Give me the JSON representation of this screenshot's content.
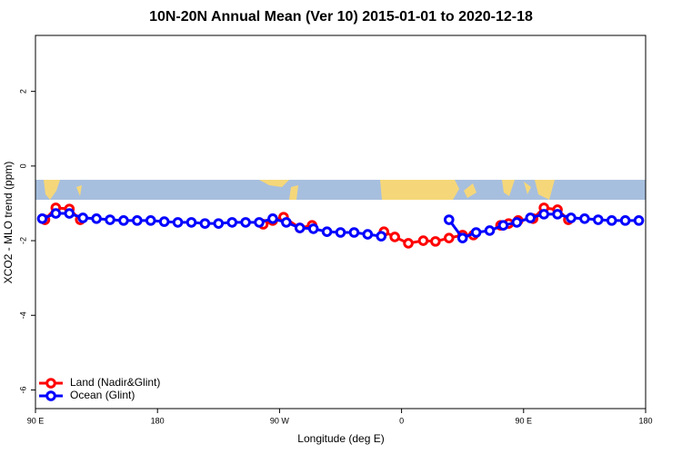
{
  "chart_data": {
    "type": "line",
    "title": "10N-20N Annual Mean (Ver 10)   2015-01-01 to 2020-12-18",
    "x_label": "Longitude (deg E)",
    "y_label": "XCO2 - MLO trend (ppm)",
    "xlim": [
      90,
      540
    ],
    "xticks": [
      {
        "value": 90,
        "label": "90 E"
      },
      180,
      {
        "value": 270,
        "label": "90 W"
      },
      {
        "value": 360,
        "label": "0"
      },
      {
        "value": 450,
        "label": "90 E"
      },
      {
        "value": 540,
        "label": "180"
      }
    ],
    "ylim": [
      -6.5,
      3.5
    ],
    "yticks": [
      -6,
      -4,
      -2,
      0,
      2
    ],
    "legend": "bottom-left",
    "series": [
      {
        "name": "Land (Nadir&Glint)",
        "color": "#ff0000",
        "x": [
          97,
          105,
          115,
          123,
          190,
          258,
          265,
          273,
          285,
          294,
          320,
          347,
          355,
          365,
          376,
          385,
          395,
          405,
          413,
          423,
          433,
          439,
          446,
          457,
          465,
          475,
          483
        ],
        "values": [
          -1.44,
          -1.12,
          -1.15,
          -1.44,
          null,
          -1.56,
          -1.46,
          -1.37,
          -1.66,
          -1.59,
          null,
          -1.76,
          -1.9,
          -2.07,
          -2.0,
          -2.02,
          -1.93,
          -1.85,
          -1.85,
          null,
          -1.59,
          -1.54,
          -1.46,
          -1.41,
          -1.12,
          -1.17,
          -1.44
        ]
      },
      {
        "name": "Ocean (Glint)",
        "color": "#0000ff",
        "x": [
          95,
          105,
          115,
          125,
          135,
          145,
          155,
          165,
          175,
          185,
          195,
          205,
          215,
          225,
          235,
          245,
          255,
          265,
          275,
          285,
          295,
          305,
          315,
          325,
          335,
          345,
          355,
          365,
          375,
          385,
          395,
          405,
          415,
          425,
          435,
          445,
          455,
          465,
          475,
          485,
          495,
          505,
          515,
          525,
          535
        ],
        "values": [
          -1.41,
          -1.27,
          -1.27,
          -1.39,
          -1.41,
          -1.44,
          -1.46,
          -1.46,
          -1.46,
          -1.49,
          -1.51,
          -1.51,
          -1.54,
          -1.54,
          -1.51,
          -1.51,
          -1.51,
          -1.41,
          -1.51,
          -1.66,
          -1.68,
          -1.76,
          -1.78,
          -1.78,
          -1.83,
          -1.88,
          null,
          null,
          null,
          null,
          -1.44,
          -1.93,
          -1.78,
          -1.73,
          -1.59,
          -1.51,
          -1.39,
          -1.29,
          -1.29,
          -1.39,
          -1.41,
          -1.44,
          -1.46,
          -1.46,
          -1.46
        ]
      }
    ]
  }
}
